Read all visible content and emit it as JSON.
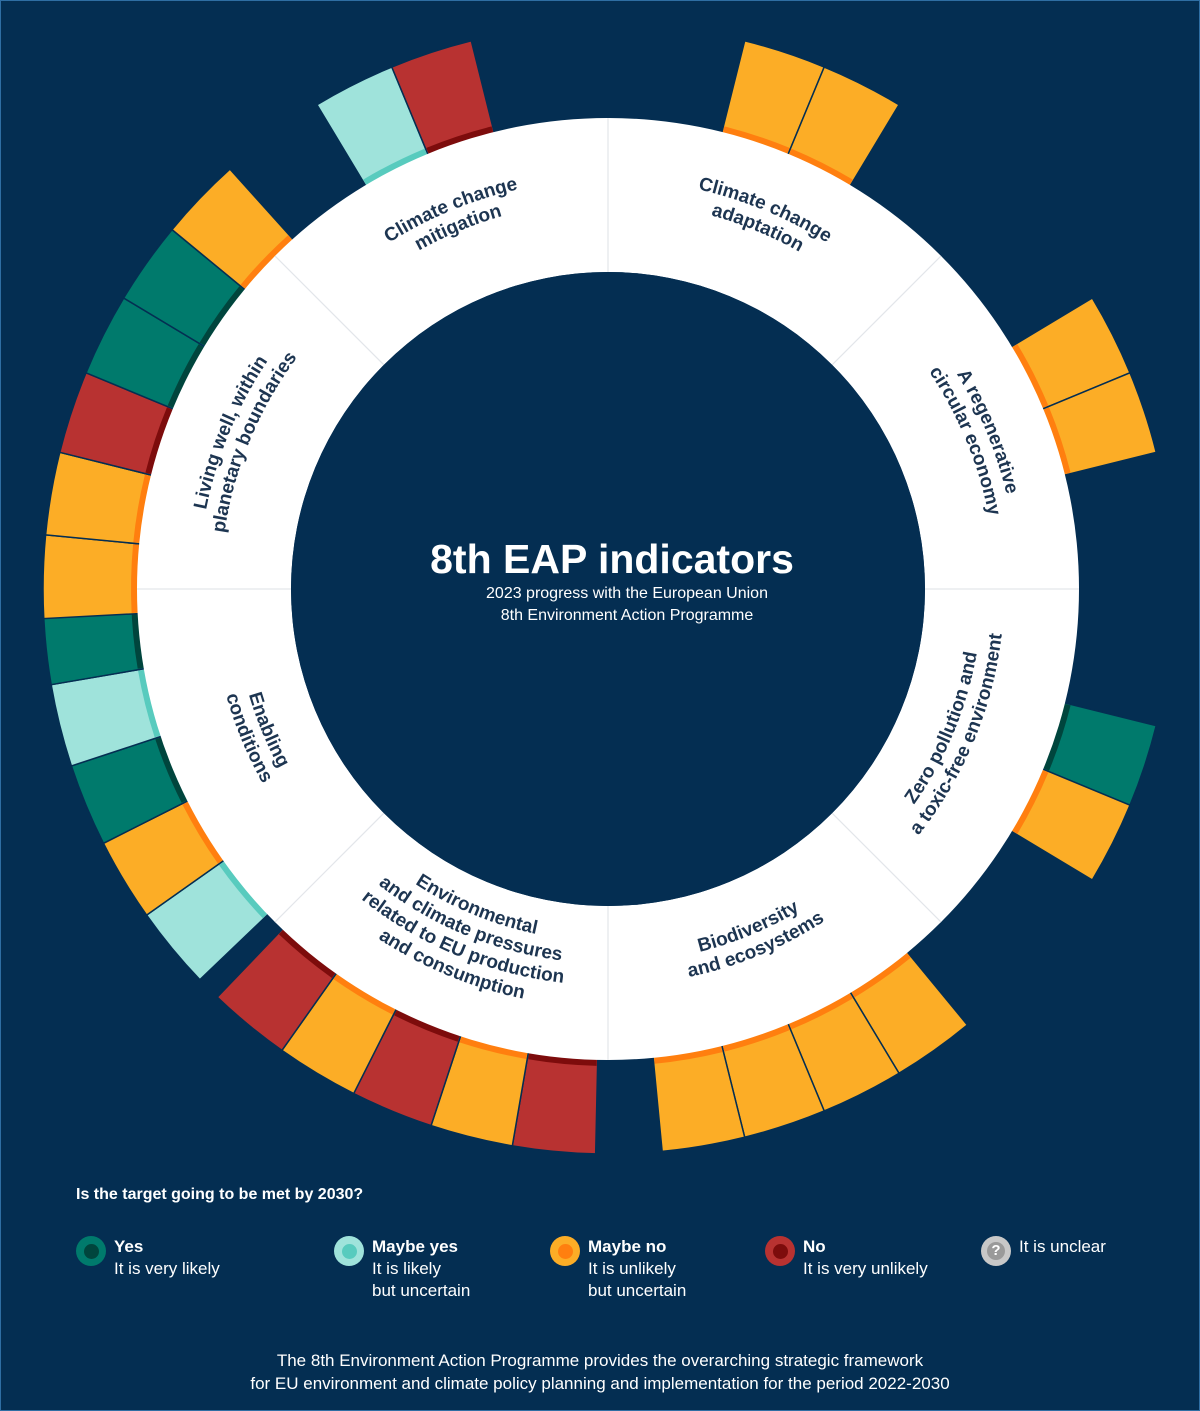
{
  "title": "8th EAP indicators",
  "subtitle_line1": "2023 progress with the European Union",
  "subtitle_line2": "8th Environment Action Programme",
  "colors": {
    "background": "#042e52",
    "yes": "#007a6c",
    "yes_dark": "#00453d",
    "maybe_yes": "#9fe3db",
    "maybe_yes_dark": "#58cbbe",
    "maybe_no": "#fcad26",
    "maybe_no_dark": "#ff7f0f",
    "no": "#b83231",
    "no_dark": "#7d0c0c",
    "unclear": "#c8c8c8"
  },
  "sections": [
    {
      "label": [
        "Climate change",
        "adaptation"
      ],
      "indicators": [
        "maybe_no",
        "maybe_no"
      ]
    },
    {
      "label": [
        "A regenerative",
        "circular economy"
      ],
      "indicators": [
        "maybe_no",
        "maybe_no"
      ]
    },
    {
      "label": [
        "Zero pollution and",
        "a toxic-free environment"
      ],
      "indicators": [
        "yes",
        "maybe_no"
      ]
    },
    {
      "label": [
        "Biodiversity",
        "and ecosystems"
      ],
      "indicators": [
        "maybe_no",
        "maybe_no",
        "maybe_no",
        "maybe_no"
      ]
    },
    {
      "label": [
        "Environmental",
        "and climate pressures",
        "related to EU production",
        "and consumption"
      ],
      "indicators": [
        "no",
        "maybe_no",
        "no",
        "maybe_no",
        "no"
      ]
    },
    {
      "label": [
        "Enabling",
        "conditions"
      ],
      "indicators": [
        "maybe_yes",
        "maybe_no",
        "yes",
        "maybe_yes",
        "yes"
      ]
    },
    {
      "label": [
        "Living well, within",
        "planetary boundaries"
      ],
      "indicators": [
        "maybe_no",
        "maybe_no",
        "no",
        "yes",
        "yes",
        "maybe_no"
      ]
    },
    {
      "label": [
        "Climate change",
        "mitigation"
      ],
      "indicators": [
        "maybe_yes",
        "no"
      ]
    }
  ],
  "legend": {
    "question": "Is the target going to be met by 2030?",
    "items": [
      {
        "key": "yes",
        "name": "Yes",
        "desc": "It is very likely"
      },
      {
        "key": "maybe_yes",
        "name": "Maybe yes",
        "desc": "It is likely\nbut uncertain"
      },
      {
        "key": "maybe_no",
        "name": "Maybe no",
        "desc": "It is unlikely\nbut uncertain"
      },
      {
        "key": "no",
        "name": "No",
        "desc": "It is very unlikely"
      },
      {
        "key": "unclear",
        "name": "",
        "desc": "It is unclear",
        "symbol": "?"
      }
    ]
  },
  "footer": {
    "line1": "The 8th Environment Action Programme provides the overarching strategic framework",
    "line2": "for EU environment and climate policy planning and implementation for the period 2022-2030"
  }
}
